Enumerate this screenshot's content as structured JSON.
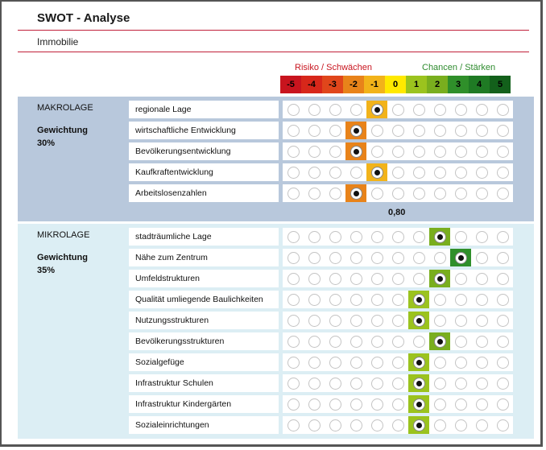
{
  "header": {
    "title": "SWOT - Analyse",
    "subtitle": "Immobilie"
  },
  "scale": {
    "risk_label": "Risiko / Schwächen",
    "chance_label": "Chancen / Stärken",
    "values": [
      "-5",
      "-4",
      "-3",
      "-2",
      "-1",
      "0",
      "1",
      "2",
      "3",
      "4",
      "5"
    ],
    "colors": [
      "#c8141e",
      "#d7271a",
      "#e0461b",
      "#e8831a",
      "#f2b31a",
      "#ffe900",
      "#9bc31e",
      "#79ae1e",
      "#2f8f2a",
      "#1f7a24",
      "#13601b"
    ]
  },
  "makro": {
    "title": "MAKROLAGE",
    "weight_label": "Gewichtung",
    "weight_value": "30%",
    "score": "0,80",
    "rows": [
      {
        "label": "regionale Lage",
        "selected": 4
      },
      {
        "label": "wirtschaftliche Entwicklung",
        "selected": 3
      },
      {
        "label": "Bevölkerungsentwicklung",
        "selected": 3
      },
      {
        "label": "Kaufkraftentwicklung",
        "selected": 4
      },
      {
        "label": "Arbeitslosenzahlen",
        "selected": 3
      }
    ]
  },
  "mikro": {
    "title": "MIKROLAGE",
    "weight_label": "Gewichtung",
    "weight_value": "35%",
    "rows": [
      {
        "label": "stadträumliche Lage",
        "selected": 7
      },
      {
        "label": "Nähe zum Zentrum",
        "selected": 8
      },
      {
        "label": "Umfeldstrukturen",
        "selected": 7
      },
      {
        "label": "Qualität umliegende Baulichkeiten",
        "selected": 6
      },
      {
        "label": "Nutzungsstrukturen",
        "selected": 6
      },
      {
        "label": "Bevölkerungsstrukturen",
        "selected": 7
      },
      {
        "label": "Sozialgefüge",
        "selected": 6
      },
      {
        "label": "Infrastruktur Schulen",
        "selected": 6
      },
      {
        "label": "Infrastruktur Kindergärten",
        "selected": 6
      },
      {
        "label": "Sozialeinrichtungen",
        "selected": 6
      }
    ]
  }
}
